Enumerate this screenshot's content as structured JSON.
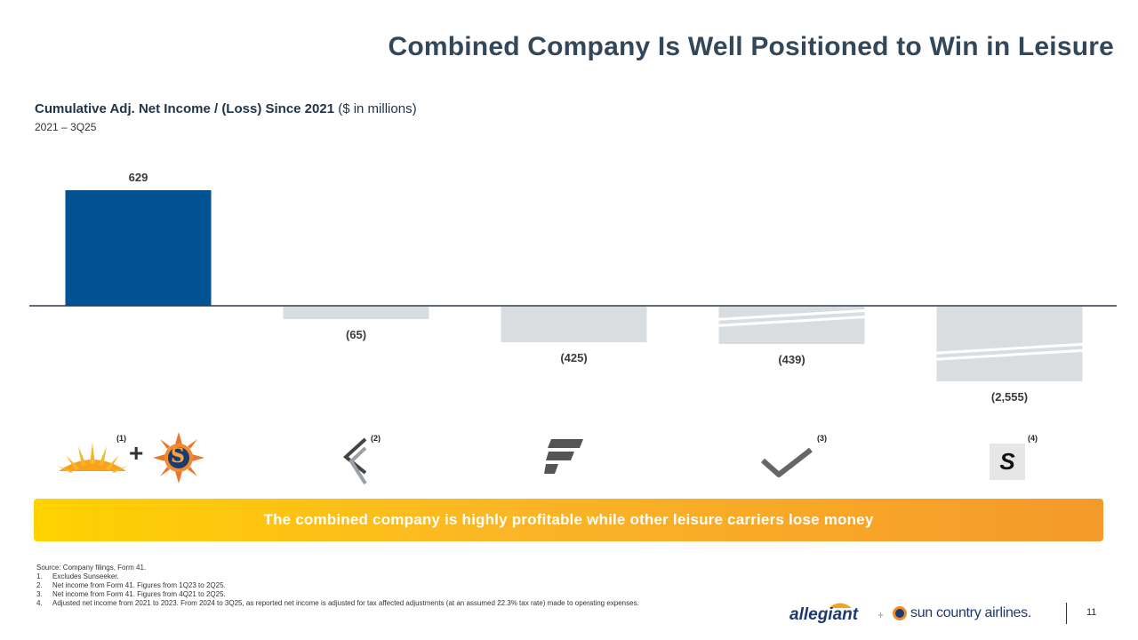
{
  "slide": {
    "title": "Combined Company Is Well Positioned to Win in Leisure",
    "chart_heading_bold": "Cumulative Adj. Net Income / (Loss) Since 2021",
    "chart_heading_units": " ($ in millions)",
    "chart_period": "2021 – 3Q25",
    "banner_text": "The combined company is highly profitable while other leisure carriers lose money",
    "page_number": "11"
  },
  "chart_data": {
    "type": "bar",
    "title": "Cumulative Adj. Net Income / (Loss) Since 2021 ($ in millions)",
    "subtitle": "2021 – 3Q25",
    "categories": [
      "Allegiant + Sun Country",
      "Breeze",
      "Frontier",
      "Avelo",
      "Spirit"
    ],
    "values": [
      629,
      -65,
      -425,
      -439,
      -2555
    ],
    "data_labels": [
      "629",
      "(65)",
      "(425)",
      "(439)",
      "(2,555)"
    ],
    "axis_break": [
      false,
      false,
      false,
      true,
      true
    ],
    "colors": [
      "#005293",
      "#d9dde0",
      "#d9dde0",
      "#d9dde0",
      "#d9dde0"
    ],
    "xlabel": "",
    "ylabel": "",
    "grid": false
  },
  "logos": {
    "combined_plus": "+",
    "notes": [
      "(1)",
      "(2)",
      "(3)",
      "(4)"
    ],
    "spirit_letter": "S",
    "sun_country_letter": "S"
  },
  "footnotes": {
    "source": "Source: Company filings, Form 41.",
    "items": [
      {
        "num": "1.",
        "text": "Excludes Sunseeker."
      },
      {
        "num": "2.",
        "text": "Net income from Form 41. Figures from 1Q23 to 2Q25."
      },
      {
        "num": "3.",
        "text": "Net income from Form 41. Figures from 4Q21 to 2Q25."
      },
      {
        "num": "4.",
        "text": "Adjusted net income from 2021 to 2023. From 2024 to 3Q25, as reported net income is adjusted for tax affected adjustments (at an assumed 22.3% tax rate) made to operating expenses."
      }
    ]
  },
  "footer": {
    "allegiant": "allegiant",
    "plus": "+",
    "suncountry": "sun country airlines."
  }
}
